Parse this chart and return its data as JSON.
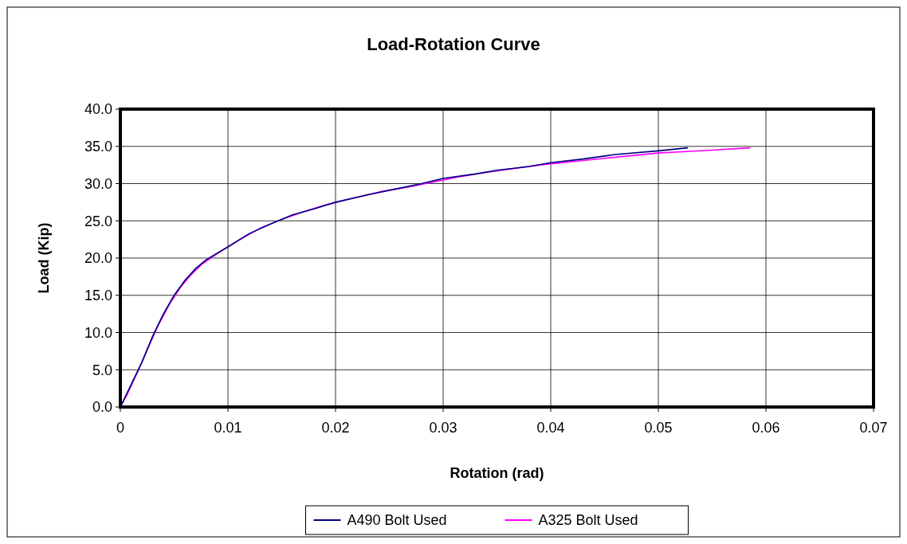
{
  "chart_data": {
    "type": "line",
    "title": "Load-Rotation Curve",
    "xlabel": "Rotation (rad)",
    "ylabel": "Load (Kip)",
    "xlim": [
      0,
      0.07
    ],
    "xticks": [
      0,
      0.01,
      0.02,
      0.03,
      0.04,
      0.05,
      0.06,
      0.07
    ],
    "ylim": [
      0,
      40
    ],
    "yticks": [
      {
        "value": 0,
        "label": "0.0"
      },
      {
        "value": 5,
        "label": "5.0"
      },
      {
        "value": 10,
        "label": "10.0"
      },
      {
        "value": 15,
        "label": "15.0"
      },
      {
        "value": 20,
        "label": "20.0"
      },
      {
        "value": 25,
        "label": "25.0"
      },
      {
        "value": 30,
        "label": "30.0"
      },
      {
        "value": 35,
        "label": "35.0"
      },
      {
        "value": 40,
        "label": "40.0"
      }
    ],
    "grid": true,
    "legend": "bottom",
    "marker": "none",
    "line_style": "solid",
    "series": [
      {
        "name": "A490 Bolt Used",
        "color": "#000080",
        "x": [
          0,
          0.001,
          0.002,
          0.003,
          0.004,
          0.005,
          0.006,
          0.007,
          0.008,
          0.01,
          0.012,
          0.014,
          0.016,
          0.018,
          0.02,
          0.023,
          0.026,
          0.028,
          0.03,
          0.033,
          0.035,
          0.038,
          0.04,
          0.043,
          0.046,
          0.05,
          0.0527
        ],
        "values": [
          0,
          3,
          6,
          9.5,
          12.5,
          15,
          17,
          18.6,
          19.8,
          21.5,
          23.3,
          24.6,
          25.8,
          26.6,
          27.5,
          28.5,
          29.4,
          30,
          30.7,
          31.3,
          31.8,
          32.3,
          32.8,
          33.3,
          33.9,
          34.4,
          34.8
        ]
      },
      {
        "name": "A325 Bolt Used",
        "color": "#ff00ff",
        "x": [
          0,
          0.0006,
          0.0016,
          0.0026,
          0.0036,
          0.0046,
          0.0056,
          0.0066,
          0.0076,
          0.0092,
          0.011,
          0.013,
          0.015,
          0.017,
          0.019,
          0.0215,
          0.0245,
          0.027,
          0.029,
          0.0315,
          0.034,
          0.0365,
          0.039,
          0.045,
          0.05,
          0.055,
          0.0585
        ],
        "values": [
          0,
          1.6,
          4.7,
          8,
          11.2,
          13.9,
          16.1,
          17.8,
          19.2,
          20.8,
          22.4,
          24,
          25.2,
          26.2,
          27.1,
          28,
          29,
          29.6,
          30.2,
          30.9,
          31.5,
          32,
          32.5,
          33.4,
          34.1,
          34.5,
          34.8
        ]
      }
    ]
  }
}
